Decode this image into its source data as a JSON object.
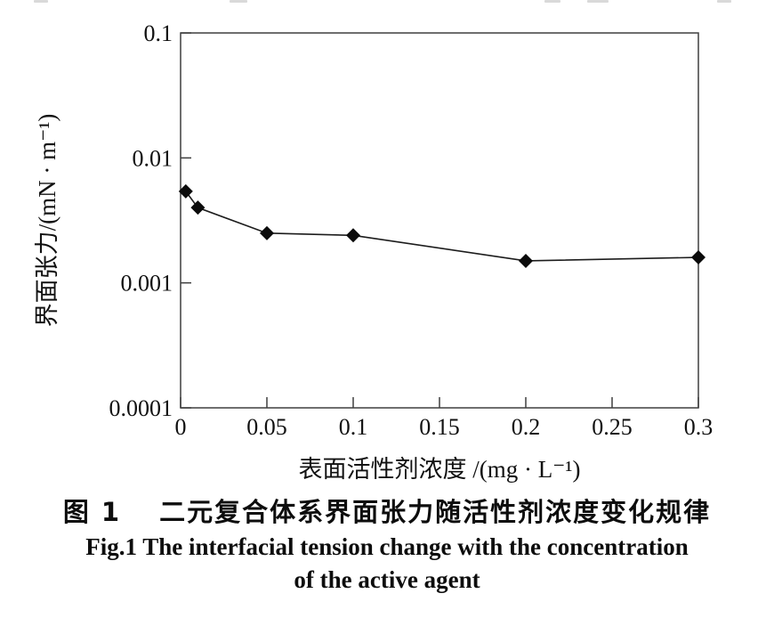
{
  "chart_data": {
    "type": "line",
    "series": [
      {
        "name": "界面张力",
        "x": [
          0.003,
          0.01,
          0.05,
          0.1,
          0.2,
          0.3
        ],
        "y": [
          0.0054,
          0.004,
          0.0025,
          0.0024,
          0.0015,
          0.0016
        ]
      }
    ],
    "marker": "diamond",
    "marker_color": "#0b0b0b",
    "line_color": "#1c1c1c",
    "axis_color": "#3f3f3f",
    "xlabel": "表面活性剂浓度 /(mg · L⁻¹)",
    "ylabel": "界面张力/(mN · m⁻¹)",
    "x_scale": "linear",
    "y_scale": "log",
    "xlim": [
      0,
      0.3
    ],
    "ylim": [
      0.0001,
      0.1
    ],
    "x_ticks": [
      0,
      0.05,
      0.1,
      0.15,
      0.2,
      0.25,
      0.3
    ],
    "x_tick_labels": [
      "0",
      "0.05",
      "0.1",
      "0.15",
      "0.2",
      "0.25",
      "0.3"
    ],
    "y_ticks": [
      0.1,
      0.01,
      0.001,
      0.0001
    ],
    "y_tick_labels": [
      "0.1",
      "0.01",
      "0.001",
      "0.0001"
    ],
    "grid": false,
    "legend": null
  },
  "caption": {
    "line1_cn": "图 1　 二元复合体系界面张力随活性剂浓度变化规律",
    "line2_en": "Fig.1 The interfacial tension change with the concentration",
    "line3_en": "of the active agent"
  },
  "colors": {
    "background": "#ffffff",
    "text": "#0d0d0d"
  }
}
